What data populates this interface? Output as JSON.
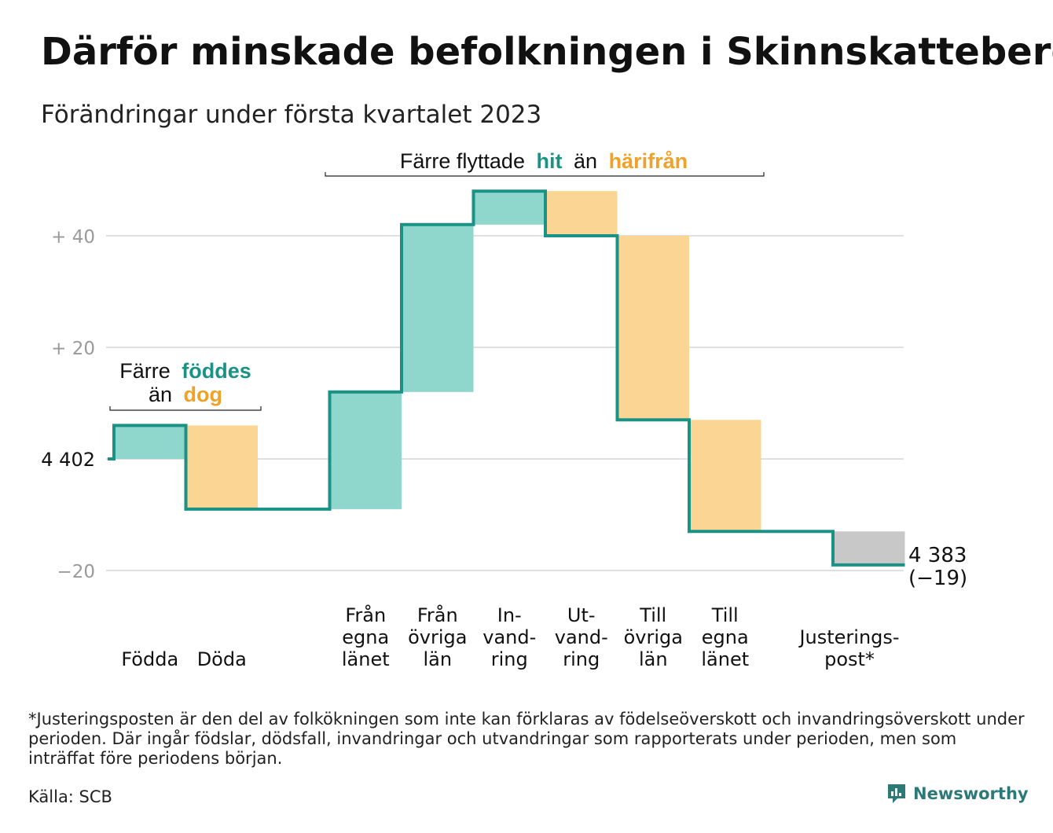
{
  "title": "Därför minskade befolkningen i Skinnskatteberg",
  "subtitle": "Förändringar under första kvartalet 2023",
  "colors": {
    "increase": "#8fd6cc",
    "decrease": "#fad593",
    "adjustment": "#c8c8c8",
    "step_line": "#1a9285",
    "gridline": "#e0e0e0",
    "accent_green": "#1a9285",
    "accent_orange": "#f0a127"
  },
  "annotations": {
    "births": {
      "line1": "Färre",
      "green_word": "föddes",
      "line2": "än",
      "orange_word": "dog"
    },
    "migration": {
      "prefix": "Färre flyttade",
      "green_word": "hit",
      "middle": "än",
      "orange_word": "härifrån"
    }
  },
  "chart_data": {
    "type": "waterfall",
    "start_label": "4 402",
    "end_label": "4 383",
    "end_change_label": "(−19)",
    "start_value": 4402,
    "end_value": 4383,
    "y_axis": {
      "min": -25,
      "max": 50,
      "ticks": [
        {
          "value": 40,
          "label": "+ 40"
        },
        {
          "value": 20,
          "label": "+ 20"
        },
        {
          "value": 0,
          "label": "4 402"
        },
        {
          "value": -20,
          "label": "−20"
        }
      ]
    },
    "steps": [
      {
        "category": "Födda",
        "lines": [
          "Födda"
        ],
        "change": 6,
        "kind": "increase"
      },
      {
        "category": "Döda",
        "lines": [
          "Döda"
        ],
        "change": -15,
        "kind": "decrease"
      },
      {
        "category": "",
        "lines": [],
        "change": 0,
        "kind": "spacer"
      },
      {
        "category": "Från egna länet",
        "lines": [
          "Från",
          "egna",
          "länet"
        ],
        "change": 21,
        "kind": "increase"
      },
      {
        "category": "Från övriga län",
        "lines": [
          "Från",
          "övriga",
          "län"
        ],
        "change": 30,
        "kind": "increase"
      },
      {
        "category": "Invandring",
        "lines": [
          "In-",
          "vand-",
          "ring"
        ],
        "change": 6,
        "kind": "increase"
      },
      {
        "category": "Utvandring",
        "lines": [
          "Ut-",
          "vand-",
          "ring"
        ],
        "change": -8,
        "kind": "decrease"
      },
      {
        "category": "Till övriga län",
        "lines": [
          "Till",
          "övriga",
          "län"
        ],
        "change": -33,
        "kind": "decrease"
      },
      {
        "category": "Till egna länet",
        "lines": [
          "Till",
          "egna",
          "länet"
        ],
        "change": -20,
        "kind": "decrease"
      },
      {
        "category": "",
        "lines": [],
        "change": 0,
        "kind": "spacer"
      },
      {
        "category": "Justeringspost*",
        "lines": [
          "Justerings-",
          "post*"
        ],
        "change": -6,
        "kind": "adjustment"
      }
    ]
  },
  "footnote": "*Justeringsposten är den del av folkökningen som inte kan förklaras av födelseöverskott och invandringsöverskott under perioden. Där ingår födslar, dödsfall, invandringar och utvandringar som rapporterats under perioden, men som inträffat före periodens början.",
  "source": "Källa: SCB",
  "brand": {
    "name": "Newsworthy",
    "icon": "newsworthy-logo-icon"
  }
}
